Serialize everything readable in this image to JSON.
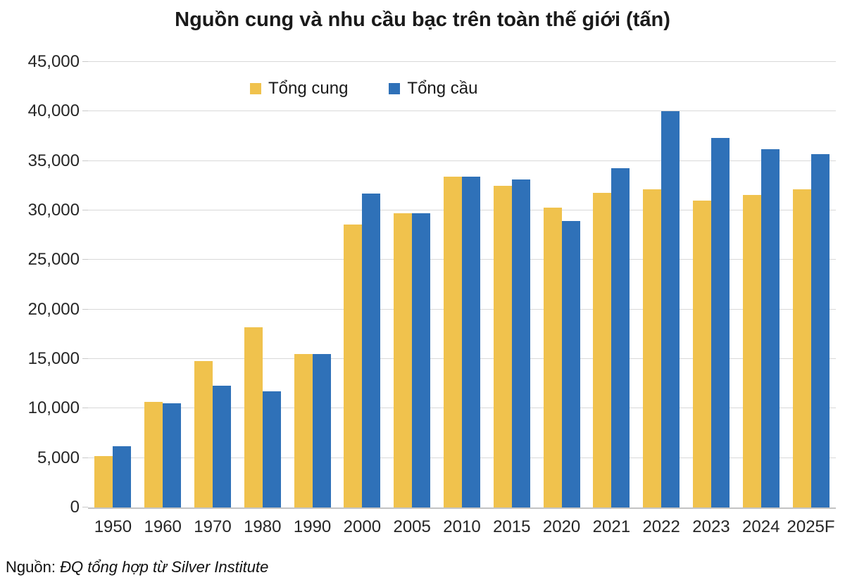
{
  "header": {
    "title": "Nguồn cung và nhu cầu bạc trên toàn thế giới (tấn)"
  },
  "legend": {
    "items": [
      {
        "label": "Tổng cung",
        "color": "#F0C24D"
      },
      {
        "label": "Tổng cầu",
        "color": "#2F71B8"
      }
    ]
  },
  "source": {
    "prefix": "Nguồn:",
    "text": "ĐQ tổng hợp từ Silver Institute"
  },
  "chart_data": {
    "type": "bar",
    "title": "Nguồn cung và nhu cầu bạc trên toàn thế giới (tấn)",
    "categories": [
      "1950",
      "1960",
      "1970",
      "1980",
      "1990",
      "2000",
      "2005",
      "2010",
      "2015",
      "2020",
      "2021",
      "2022",
      "2023",
      "2024",
      "2025F"
    ],
    "series": [
      {
        "name": "Tổng cung",
        "color": "#F0C24D",
        "values": [
          5200,
          10700,
          14800,
          18200,
          15500,
          28600,
          29700,
          33400,
          32500,
          30300,
          31800,
          32100,
          31000,
          31600,
          32100
        ]
      },
      {
        "name": "Tổng cầu",
        "color": "#2F71B8",
        "values": [
          6200,
          10500,
          12300,
          11700,
          15500,
          31700,
          29700,
          33400,
          33100,
          28900,
          34300,
          40000,
          37300,
          36200,
          35700
        ]
      }
    ],
    "xlabel": "",
    "ylabel": "",
    "ylim": [
      0,
      45000
    ],
    "ytick_step": 5000,
    "ytick_labels": [
      "0",
      "5,000",
      "10,000",
      "15,000",
      "20,000",
      "25,000",
      "30,000",
      "35,000",
      "40,000",
      "45,000"
    ],
    "grid": "horizontal",
    "legend_position": "top-inside",
    "gridline_color": "#D9D9D9",
    "axis_line_color": "#C3C3C3",
    "text_color": "#262626"
  }
}
